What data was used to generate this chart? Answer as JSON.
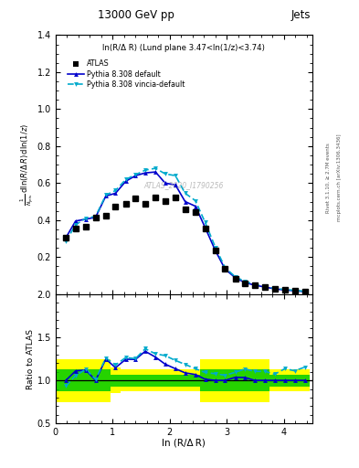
{
  "title": "13000 GeV pp",
  "title_right": "Jets",
  "annotation": "ln(R/Δ R) (Lund plane 3.47<ln(1/z)<3.74)",
  "watermark": "ATLAS_2020_I1790256",
  "ylabel_ratio": "Ratio to ATLAS",
  "xlabel": "ln (R/Δ R)",
  "right_label": "Rivet 3.1.10, ≥ 2.7M events",
  "right_label2": "mcplots.cern.ch [arXiv:1306.3436]",
  "atlas_x": [
    0.18,
    0.35,
    0.53,
    0.7,
    0.88,
    1.05,
    1.23,
    1.4,
    1.57,
    1.75,
    1.92,
    2.1,
    2.27,
    2.45,
    2.62,
    2.8,
    2.97,
    3.15,
    3.32,
    3.49,
    3.67,
    3.84,
    4.02,
    4.19,
    4.37
  ],
  "atlas_y": [
    0.305,
    0.355,
    0.363,
    0.415,
    0.425,
    0.475,
    0.49,
    0.515,
    0.49,
    0.52,
    0.505,
    0.52,
    0.46,
    0.445,
    0.355,
    0.235,
    0.135,
    0.085,
    0.06,
    0.048,
    0.038,
    0.028,
    0.022,
    0.018,
    0.013
  ],
  "pythia_default_x": [
    0.18,
    0.35,
    0.53,
    0.7,
    0.88,
    1.05,
    1.23,
    1.4,
    1.57,
    1.75,
    1.92,
    2.1,
    2.27,
    2.45,
    2.62,
    2.8,
    2.97,
    3.15,
    3.32,
    3.49,
    3.67,
    3.84,
    4.02,
    4.19,
    4.37
  ],
  "pythia_default_y": [
    0.305,
    0.395,
    0.405,
    0.415,
    0.53,
    0.545,
    0.61,
    0.64,
    0.655,
    0.66,
    0.6,
    0.59,
    0.5,
    0.475,
    0.36,
    0.235,
    0.135,
    0.088,
    0.062,
    0.048,
    0.038,
    0.028,
    0.022,
    0.018,
    0.013
  ],
  "pythia_vincia_x": [
    0.18,
    0.35,
    0.53,
    0.7,
    0.88,
    1.05,
    1.23,
    1.4,
    1.57,
    1.75,
    1.92,
    2.1,
    2.27,
    2.45,
    2.62,
    2.8,
    2.97,
    3.15,
    3.32,
    3.49,
    3.67,
    3.84,
    4.02,
    4.19,
    4.37
  ],
  "pythia_vincia_y": [
    0.285,
    0.375,
    0.41,
    0.42,
    0.535,
    0.56,
    0.62,
    0.645,
    0.67,
    0.68,
    0.65,
    0.64,
    0.545,
    0.505,
    0.388,
    0.253,
    0.143,
    0.093,
    0.068,
    0.053,
    0.042,
    0.03,
    0.025,
    0.02,
    0.015
  ],
  "ratio_default_y": [
    1.0,
    1.11,
    1.12,
    1.0,
    1.247,
    1.147,
    1.245,
    1.243,
    1.337,
    1.27,
    1.188,
    1.135,
    1.087,
    1.068,
    1.014,
    1.0,
    1.0,
    1.035,
    1.033,
    1.0,
    1.0,
    1.0,
    1.0,
    1.0,
    1.0
  ],
  "ratio_vincia_y": [
    0.934,
    1.056,
    1.13,
    1.012,
    1.259,
    1.179,
    1.265,
    1.252,
    1.367,
    1.308,
    1.287,
    1.231,
    1.185,
    1.135,
    1.092,
    1.077,
    1.059,
    1.094,
    1.133,
    1.104,
    1.105,
    1.071,
    1.136,
    1.111,
    1.154
  ],
  "bin_edges": [
    0.0,
    0.265,
    0.44,
    0.615,
    0.79,
    0.965,
    1.14,
    1.315,
    1.485,
    1.66,
    1.835,
    2.01,
    2.185,
    2.36,
    2.535,
    2.71,
    2.885,
    3.06,
    3.235,
    3.41,
    3.58,
    3.755,
    3.93,
    4.105,
    4.28,
    4.455
  ],
  "yellow_lo": [
    0.75,
    0.75,
    0.75,
    0.75,
    0.75,
    0.85,
    0.87,
    0.87,
    0.87,
    0.87,
    0.87,
    0.87,
    0.87,
    0.87,
    0.75,
    0.75,
    0.75,
    0.75,
    0.75,
    0.75,
    0.75,
    0.87,
    0.87,
    0.87,
    0.87
  ],
  "yellow_hi": [
    1.25,
    1.25,
    1.25,
    1.25,
    1.25,
    1.15,
    1.13,
    1.13,
    1.13,
    1.13,
    1.13,
    1.13,
    1.13,
    1.13,
    1.25,
    1.25,
    1.25,
    1.25,
    1.25,
    1.25,
    1.25,
    1.13,
    1.13,
    1.13,
    1.13
  ],
  "green_lo": [
    0.87,
    0.87,
    0.87,
    0.87,
    0.87,
    0.93,
    0.93,
    0.93,
    0.93,
    0.93,
    0.93,
    0.93,
    0.93,
    0.93,
    0.87,
    0.87,
    0.87,
    0.87,
    0.87,
    0.87,
    0.87,
    0.93,
    0.93,
    0.93,
    0.93
  ],
  "green_hi": [
    1.13,
    1.13,
    1.13,
    1.13,
    1.13,
    1.07,
    1.07,
    1.07,
    1.07,
    1.07,
    1.07,
    1.07,
    1.07,
    1.07,
    1.13,
    1.13,
    1.13,
    1.13,
    1.13,
    1.13,
    1.13,
    1.07,
    1.07,
    1.07,
    1.07
  ],
  "color_pythia_default": "#0000cc",
  "color_pythia_vincia": "#00aacc",
  "color_yellow": "#ffff00",
  "color_green": "#00cc00",
  "ylim_main": [
    0.0,
    1.4
  ],
  "ylim_ratio": [
    0.5,
    2.0
  ],
  "xlim": [
    0.0,
    4.5
  ],
  "yticks_main": [
    0.2,
    0.4,
    0.6,
    0.8,
    1.0,
    1.2,
    1.4
  ],
  "yticks_ratio": [
    0.5,
    1.0,
    1.5,
    2.0
  ],
  "xticks": [
    0,
    1,
    2,
    3,
    4
  ]
}
